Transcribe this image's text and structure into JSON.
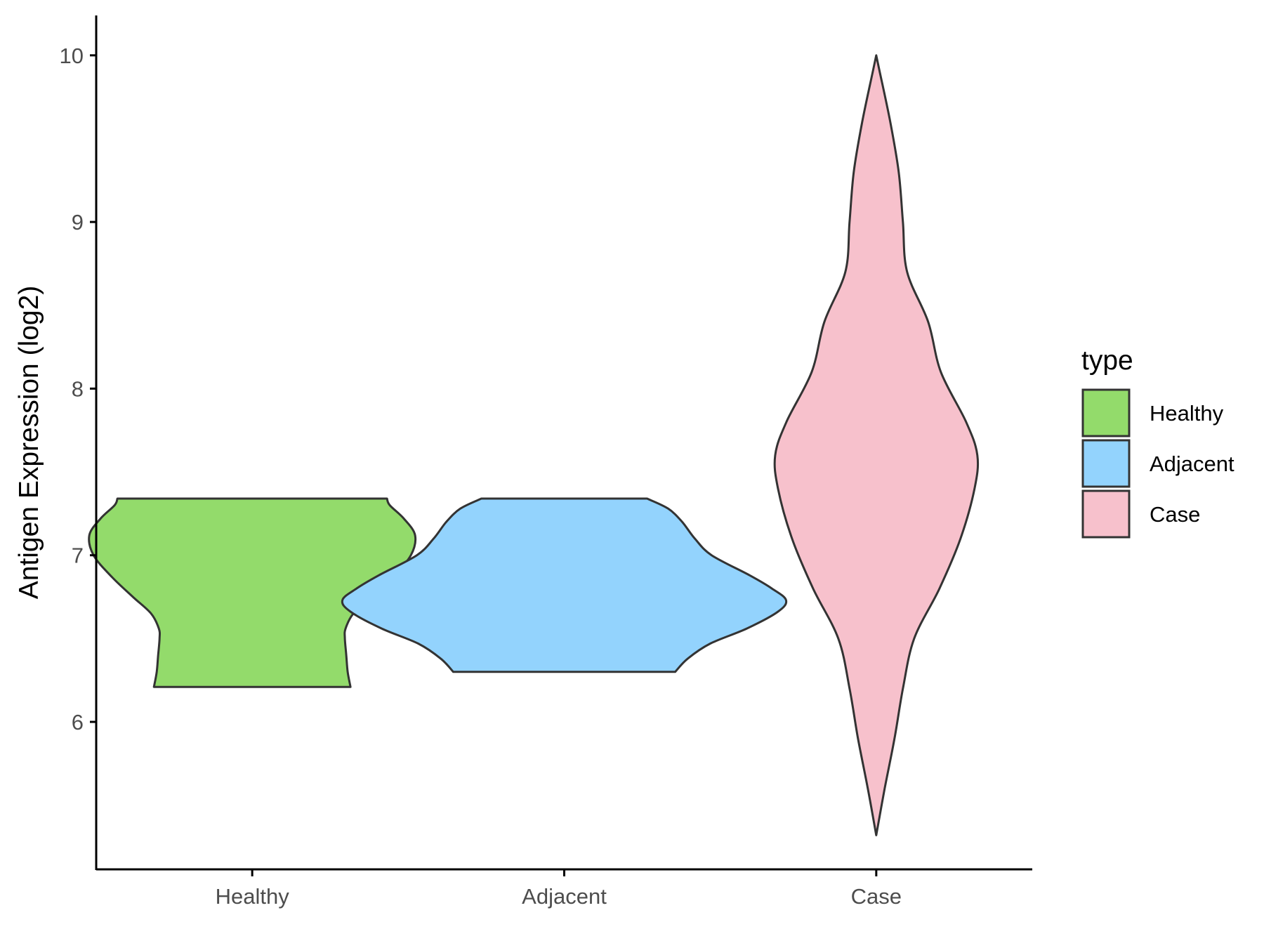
{
  "chart_data": {
    "type": "violin",
    "title": "",
    "xlabel": "",
    "ylabel": "Antigen Expression (log2)",
    "categories": [
      "Healthy",
      "Adjacent",
      "Case"
    ],
    "yticks": [
      "6",
      "7",
      "8",
      "9",
      "10"
    ],
    "ylim": [
      5.1,
      10.25
    ],
    "grid": false,
    "legend": {
      "title": "type",
      "position": "right",
      "entries": [
        "Healthy",
        "Adjacent",
        "Case"
      ]
    },
    "colors": {
      "Healthy": "#93DB6B",
      "Adjacent": "#93D3FD",
      "Case": "#F7C1CC",
      "outline": "#333333",
      "axis": "#000000"
    },
    "series": [
      {
        "name": "Healthy",
        "min": 6.21,
        "max": 7.34,
        "density": [
          [
            6.21,
            0.7
          ],
          [
            6.3,
            0.68
          ],
          [
            6.4,
            0.67
          ],
          [
            6.5,
            0.66
          ],
          [
            6.56,
            0.665
          ],
          [
            6.65,
            0.72
          ],
          [
            6.75,
            0.85
          ],
          [
            6.87,
            1.0
          ],
          [
            7.0,
            1.13
          ],
          [
            7.12,
            1.16
          ],
          [
            7.22,
            1.08
          ],
          [
            7.3,
            0.98
          ],
          [
            7.34,
            0.96
          ]
        ]
      },
      {
        "name": "Adjacent",
        "min": 6.3,
        "max": 7.34,
        "density": [
          [
            6.3,
            0.79
          ],
          [
            6.38,
            0.88
          ],
          [
            6.47,
            1.04
          ],
          [
            6.56,
            1.3
          ],
          [
            6.66,
            1.52
          ],
          [
            6.73,
            1.58
          ],
          [
            6.8,
            1.48
          ],
          [
            6.88,
            1.32
          ],
          [
            7.0,
            1.05
          ],
          [
            7.1,
            0.93
          ],
          [
            7.2,
            0.84
          ],
          [
            7.28,
            0.74
          ],
          [
            7.34,
            0.59
          ]
        ]
      },
      {
        "name": "Case",
        "min": 5.32,
        "max": 10.0,
        "density": [
          [
            5.32,
            0.0
          ],
          [
            5.6,
            0.06
          ],
          [
            5.9,
            0.13
          ],
          [
            6.2,
            0.19
          ],
          [
            6.5,
            0.27
          ],
          [
            6.8,
            0.45
          ],
          [
            7.1,
            0.6
          ],
          [
            7.4,
            0.7
          ],
          [
            7.6,
            0.72
          ],
          [
            7.8,
            0.64
          ],
          [
            8.1,
            0.46
          ],
          [
            8.4,
            0.37
          ],
          [
            8.7,
            0.22
          ],
          [
            9.0,
            0.19
          ],
          [
            9.3,
            0.16
          ],
          [
            9.6,
            0.1
          ],
          [
            9.9,
            0.025
          ],
          [
            10.0,
            0.0
          ]
        ]
      }
    ]
  }
}
